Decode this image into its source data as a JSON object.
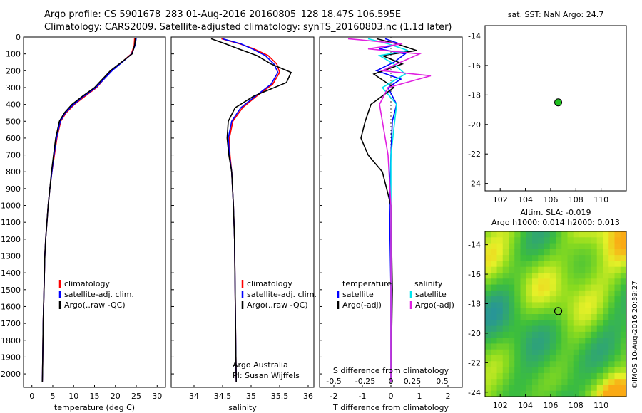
{
  "header": {
    "line1": "Argo profile: CS 5901678_283 01-Aug-2016 20160805_128 18.47S 106.595E",
    "line2": "Climatology: CARS2009. Satellite-adjusted climatology: synTS_20160803.nc (1.1d later)"
  },
  "colors": {
    "climatology": "#ff0000",
    "satellite": "#0000ff",
    "argo": "#000000",
    "sat_salinity": "#00e5ee",
    "argo_salinity": "#e020e0",
    "map_marker": "#20c020"
  },
  "chart_data": [
    {
      "id": "temperature",
      "type": "line",
      "xlabel": "temperature (deg C)",
      "ylabel": "",
      "xlim": [
        -2,
        32
      ],
      "ylim": [
        2080,
        0
      ],
      "xticks": [
        0,
        5,
        10,
        15,
        20,
        25,
        30
      ],
      "yticks": [
        0,
        100,
        200,
        300,
        400,
        500,
        600,
        700,
        800,
        900,
        1000,
        1100,
        1200,
        1300,
        1400,
        1500,
        1600,
        1700,
        1800,
        1900,
        2000
      ],
      "legend": [
        "climatology",
        "satellite-adj. clim.",
        "Argo(..raw -QC)"
      ],
      "series": [
        {
          "name": "climatology",
          "color": "#ff0000",
          "x": [
            24.6,
            24.5,
            23.8,
            21.5,
            19.0,
            15.5,
            12.8,
            10.2,
            8.2,
            6.9,
            6.0,
            5.4,
            4.8,
            4.3,
            3.9,
            3.6,
            3.3,
            3.1,
            2.9,
            2.7,
            2.55,
            2.5
          ],
          "y": [
            5,
            50,
            100,
            150,
            200,
            300,
            350,
            400,
            450,
            500,
            600,
            700,
            800,
            900,
            1000,
            1100,
            1200,
            1300,
            1500,
            1700,
            2000,
            2050
          ]
        },
        {
          "name": "satellite-adj. clim.",
          "color": "#0000ff",
          "x": [
            25.0,
            24.7,
            23.9,
            21.6,
            19.2,
            15.3,
            12.5,
            10.0,
            8.0,
            6.8,
            5.9,
            5.3,
            4.8,
            4.3,
            3.9,
            3.6,
            3.3,
            3.1,
            2.9,
            2.7,
            2.55,
            2.5
          ],
          "y": [
            5,
            50,
            100,
            150,
            200,
            300,
            350,
            400,
            450,
            500,
            600,
            700,
            800,
            900,
            1000,
            1100,
            1200,
            1300,
            1500,
            1700,
            2000,
            2050
          ]
        },
        {
          "name": "Argo(..raw -QC)",
          "color": "#000000",
          "x": [
            24.8,
            24.6,
            24.0,
            21.4,
            18.8,
            15.0,
            12.2,
            9.6,
            7.8,
            6.6,
            5.7,
            5.2,
            4.7,
            4.3,
            3.9,
            3.6,
            3.3,
            3.1,
            2.9,
            2.7,
            2.55,
            2.5
          ],
          "y": [
            5,
            50,
            100,
            150,
            200,
            300,
            350,
            400,
            450,
            500,
            600,
            700,
            800,
            900,
            1000,
            1100,
            1200,
            1300,
            1500,
            1700,
            2000,
            2050
          ]
        }
      ],
      "annotations": []
    },
    {
      "id": "salinity",
      "type": "line",
      "xlabel": "salinity",
      "ylabel": "",
      "xlim": [
        33.6,
        36.1
      ],
      "ylim": [
        2080,
        0
      ],
      "xticks": [
        34,
        34.5,
        35,
        35.5,
        36
      ],
      "legend": [
        "climatology",
        "satellite-adj. clim.",
        "Argo(..raw -QC)"
      ],
      "series": [
        {
          "name": "climatology",
          "color": "#ff0000",
          "x": [
            34.48,
            34.8,
            35.05,
            35.3,
            35.45,
            35.5,
            35.38,
            35.1,
            34.85,
            34.68,
            34.62,
            34.63,
            34.66,
            34.69,
            34.71,
            34.72,
            34.73,
            34.74
          ],
          "y": [
            10,
            40,
            70,
            110,
            160,
            210,
            280,
            350,
            420,
            500,
            600,
            700,
            800,
            1000,
            1200,
            1500,
            1800,
            2050
          ]
        },
        {
          "name": "satellite-adj. clim.",
          "color": "#0000ff",
          "x": [
            34.5,
            34.82,
            35.02,
            35.25,
            35.4,
            35.47,
            35.35,
            35.08,
            34.82,
            34.66,
            34.6,
            34.62,
            34.66,
            34.69,
            34.71,
            34.72,
            34.73,
            34.74
          ],
          "y": [
            10,
            40,
            70,
            110,
            160,
            210,
            280,
            350,
            420,
            500,
            600,
            700,
            800,
            1000,
            1200,
            1500,
            1800,
            2050
          ]
        },
        {
          "name": "Argo(..raw -QC)",
          "color": "#000000",
          "x": [
            34.3,
            34.55,
            34.78,
            35.1,
            35.35,
            35.7,
            35.62,
            35.05,
            34.72,
            34.6,
            34.58,
            34.61,
            34.66,
            34.69,
            34.71,
            34.72,
            34.73,
            34.74
          ],
          "y": [
            10,
            40,
            70,
            110,
            160,
            210,
            270,
            350,
            420,
            500,
            600,
            700,
            800,
            1000,
            1200,
            1500,
            1800,
            2050
          ]
        }
      ],
      "annotations": [
        "Argo Australia",
        "PI: Susan Wijffels"
      ]
    },
    {
      "id": "difference",
      "type": "line",
      "xlabel": "T difference from climatology",
      "xlabel_top": "S difference from climatology",
      "xlim": [
        -2.5,
        2.5
      ],
      "ylim": [
        2080,
        0
      ],
      "xticks": [
        -2,
        -1,
        0,
        1,
        2
      ],
      "xticks_top": [
        "-0.5",
        "-0.25",
        "0",
        "0.25",
        "0.5"
      ],
      "xticks_top_pos": [
        -2,
        -1,
        0,
        1,
        2
      ],
      "legend": [
        "temperature",
        "satellite",
        "Argo(-adj)",
        "salinity",
        "satellite",
        "Argo(-adj)"
      ],
      "series": [
        {
          "name": "temperature satellite",
          "color": "#0000ff",
          "x": [
            -0.2,
            0.3,
            -0.4,
            0.5,
            0.1,
            -0.5,
            0.35,
            -0.1,
            0.2,
            0.05,
            0,
            -0.05,
            0,
            0
          ],
          "y": [
            10,
            40,
            70,
            100,
            150,
            200,
            250,
            300,
            400,
            500,
            700,
            1000,
            1500,
            2050
          ]
        },
        {
          "name": "temperature Argo(-adj)",
          "color": "#000000",
          "x": [
            -0.5,
            0.2,
            0.9,
            -0.3,
            0.4,
            -0.6,
            0.1,
            -0.7,
            -0.9,
            -1.05,
            -0.8,
            -0.3,
            0,
            0.05,
            0
          ],
          "y": [
            10,
            40,
            80,
            110,
            160,
            220,
            300,
            400,
            500,
            600,
            700,
            800,
            1000,
            1500,
            2050
          ]
        },
        {
          "name": "salinity satellite",
          "color": "#00e5ee",
          "x": [
            -0.8,
            -0.1,
            0.6,
            -0.4,
            0.1,
            0.5,
            -0.3,
            0.2,
            0,
            0,
            0,
            0
          ],
          "y": [
            10,
            40,
            80,
            110,
            160,
            220,
            300,
            400,
            700,
            1000,
            1500,
            2050
          ]
        },
        {
          "name": "salinity Argo(-adj)",
          "color": "#e020e0",
          "x": [
            -1.5,
            0.4,
            -0.8,
            1.0,
            0.2,
            -0.3,
            1.4,
            -0.1,
            -0.4,
            -0.3,
            -0.1,
            0,
            0
          ],
          "y": [
            10,
            40,
            70,
            100,
            160,
            200,
            230,
            300,
            400,
            500,
            700,
            1000,
            2050
          ]
        }
      ]
    },
    {
      "id": "sst-map",
      "type": "scatter",
      "title": "sat. SST: NaN Argo: 24.7",
      "xlim": [
        100.8,
        112
      ],
      "ylim": [
        -24.5,
        -13.3
      ],
      "xticks": [
        102,
        104,
        106,
        108,
        110
      ],
      "yticks": [
        -14,
        -16,
        -18,
        -20,
        -22,
        -24
      ],
      "points": [
        {
          "x": 106.6,
          "y": -18.5
        }
      ]
    },
    {
      "id": "sla-map",
      "type": "heatmap",
      "title": "Altim. SLA: -0.019",
      "subtitle": "Argo h1000: 0.014 h2000: 0.013",
      "xlim": [
        100.8,
        112
      ],
      "ylim": [
        -24.3,
        -13.1
      ],
      "xticks": [
        102,
        104,
        106,
        108,
        110
      ],
      "yticks": [
        -14,
        -16,
        -18,
        -20,
        -22,
        -24
      ],
      "points": [
        {
          "x": 106.6,
          "y": -18.5
        }
      ]
    }
  ],
  "side_label": "©IMOS 10-Aug-2016 20:39:27"
}
